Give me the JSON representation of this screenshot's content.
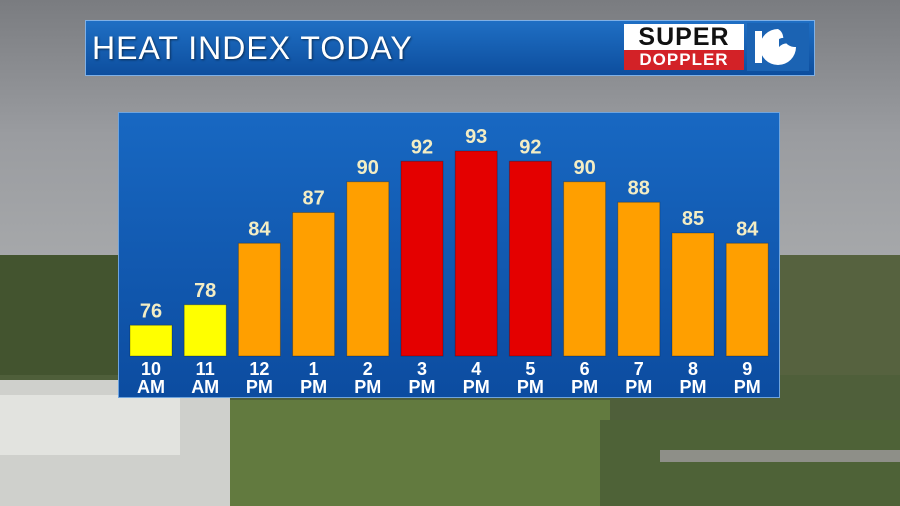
{
  "title": "HEAT INDEX TODAY",
  "logo": {
    "line1": "SUPER",
    "line2": "DOPPLER",
    "icon": "channel-10-wave-icon"
  },
  "colors": {
    "low": "#ffff00",
    "mid": "#ff9f00",
    "high": "#e40000",
    "panel": "#1565bf"
  },
  "chart_data": {
    "type": "bar",
    "categories": [
      [
        "10",
        "AM"
      ],
      [
        "11",
        "AM"
      ],
      [
        "12",
        "PM"
      ],
      [
        "1",
        "PM"
      ],
      [
        "2",
        "PM"
      ],
      [
        "3",
        "PM"
      ],
      [
        "4",
        "PM"
      ],
      [
        "5",
        "PM"
      ],
      [
        "6",
        "PM"
      ],
      [
        "7",
        "PM"
      ],
      [
        "8",
        "PM"
      ],
      [
        "9",
        "PM"
      ]
    ],
    "values": [
      76,
      78,
      84,
      87,
      90,
      92,
      93,
      92,
      90,
      88,
      85,
      84
    ],
    "bar_colors": [
      "#ffff00",
      "#ffff00",
      "#ff9f00",
      "#ff9f00",
      "#ff9f00",
      "#e40000",
      "#e40000",
      "#e40000",
      "#ff9f00",
      "#ff9f00",
      "#ff9f00",
      "#ff9f00"
    ],
    "value_labels": true,
    "title": "HEAT INDEX TODAY",
    "xlabel": "",
    "ylabel": "",
    "grid": false
  }
}
